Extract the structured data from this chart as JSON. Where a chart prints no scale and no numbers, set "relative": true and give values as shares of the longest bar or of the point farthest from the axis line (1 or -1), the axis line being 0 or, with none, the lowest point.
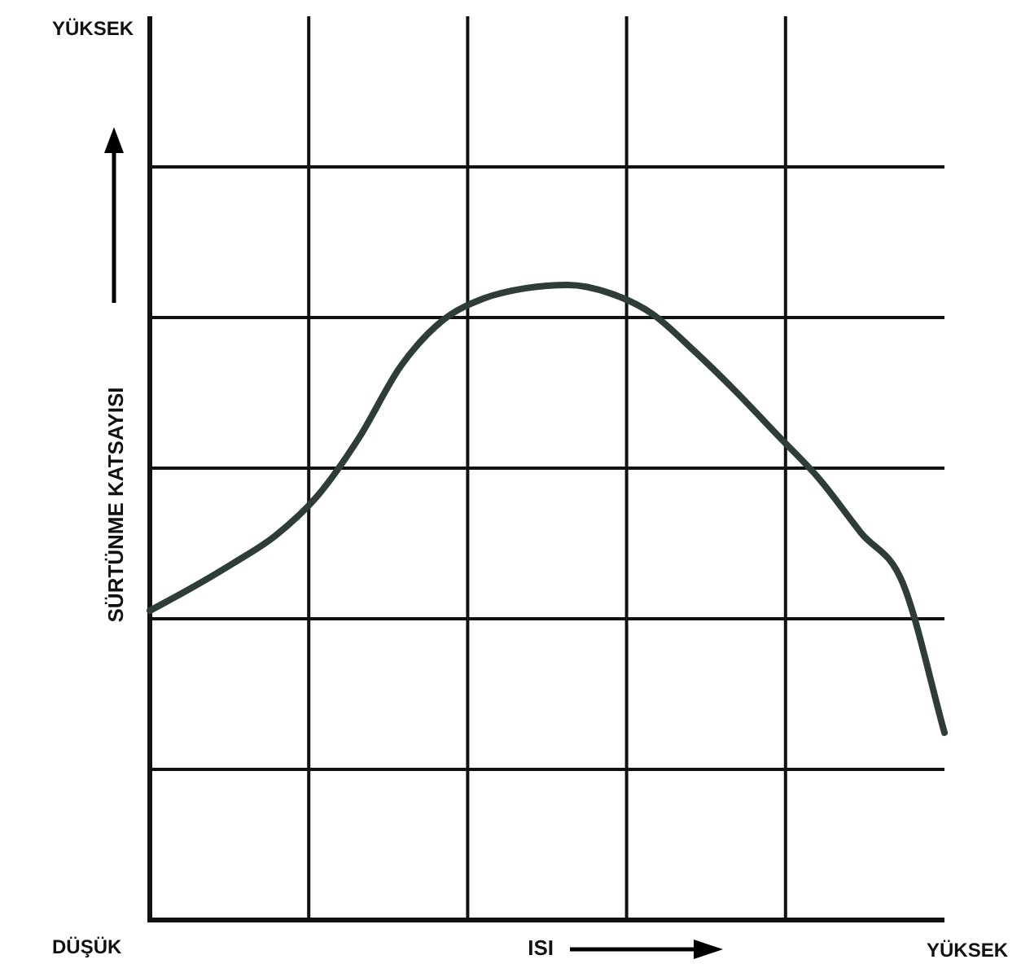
{
  "chart_data": {
    "type": "line",
    "relative": true,
    "grid": true,
    "ylabel": "SÜRTÜNME KATSAYISI",
    "xlabel": "ISI",
    "categories": [
      null,
      null,
      null,
      null,
      null,
      null,
      null,
      null,
      null,
      null,
      null,
      null,
      null,
      null,
      null,
      null,
      null,
      null,
      null,
      null
    ],
    "series": [
      {
        "color": "#2f3d37",
        "values": [
          0.487,
          0.523,
          0.562,
          0.605,
          0.667,
          0.759,
          0.872,
          0.944,
          0.979,
          0.995,
          1,
          0.987,
          0.955,
          0.897,
          0.833,
          0.764,
          0.695,
          0.61,
          0.531,
          0.295
        ]
      }
    ],
    "annotations": [
      "YÜKSEK",
      "DÜŞÜK",
      "YÜKSEK"
    ]
  }
}
